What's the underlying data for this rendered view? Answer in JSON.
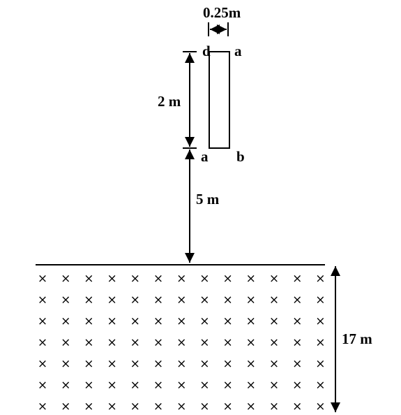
{
  "labels": {
    "width": "0.25m",
    "height": "2 m",
    "distance": "5 m",
    "field_depth": "17 m",
    "corner_top_left": "d",
    "corner_top_right": "a",
    "corner_bottom_left": "a",
    "corner_bottom_right": "b"
  },
  "field": {
    "symbol": "×",
    "rows": 7,
    "columns": 13
  }
}
